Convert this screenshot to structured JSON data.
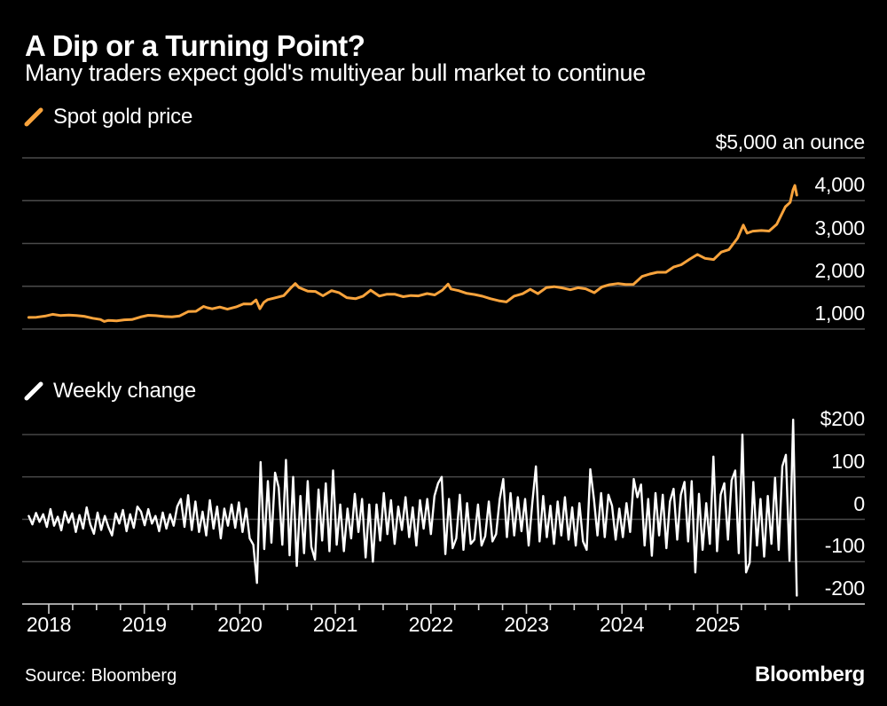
{
  "header": {
    "title": "A Dip or a Turning Point?",
    "subtitle": "Many traders expect gold's multiyear bull market to continue"
  },
  "colors": {
    "background": "#000000",
    "text": "#FFFFFF",
    "grid": "#4B4B4B",
    "axis": "#D0D0D0",
    "gold": "#F8A33C",
    "white_series": "#FFFFFF"
  },
  "x_axis": {
    "year_ticks": [
      2018,
      2019,
      2020,
      2021,
      2022,
      2023,
      2024,
      2025
    ],
    "labels": [
      "2018",
      "2019",
      "2020",
      "2021",
      "2022",
      "2023",
      "2024",
      "2025"
    ],
    "quarter_tick_start": 2018,
    "quarter_tick_end": 2025.75
  },
  "footer": {
    "source": "Source: Bloomberg",
    "brand": "Bloomberg"
  },
  "chart_data": [
    {
      "type": "line",
      "title": "Spot gold price",
      "series_color": "#F8A33C",
      "x_domain": [
        2017.79,
        2025.83
      ],
      "ylim": [
        1000,
        5000
      ],
      "grid": true,
      "y_ticks": [
        {
          "value": 5000,
          "label": "$5,000 an ounce"
        },
        {
          "value": 4000,
          "label": "4,000"
        },
        {
          "value": 3000,
          "label": "3,000"
        },
        {
          "value": 2000,
          "label": "2,000"
        },
        {
          "value": 1000,
          "label": "1,000"
        }
      ],
      "points": [
        [
          2017.79,
          1271
        ],
        [
          2017.87,
          1275
        ],
        [
          2017.96,
          1303
        ],
        [
          2018.04,
          1345
        ],
        [
          2018.12,
          1318
        ],
        [
          2018.21,
          1325
        ],
        [
          2018.29,
          1315
        ],
        [
          2018.37,
          1298
        ],
        [
          2018.46,
          1253
        ],
        [
          2018.54,
          1224
        ],
        [
          2018.58,
          1178
        ],
        [
          2018.62,
          1201
        ],
        [
          2018.71,
          1192
        ],
        [
          2018.79,
          1215
        ],
        [
          2018.87,
          1222
        ],
        [
          2018.96,
          1282
        ],
        [
          2019.04,
          1321
        ],
        [
          2019.12,
          1313
        ],
        [
          2019.21,
          1292
        ],
        [
          2019.29,
          1284
        ],
        [
          2019.37,
          1306
        ],
        [
          2019.46,
          1409
        ],
        [
          2019.54,
          1414
        ],
        [
          2019.62,
          1528
        ],
        [
          2019.66,
          1497
        ],
        [
          2019.71,
          1472
        ],
        [
          2019.79,
          1513
        ],
        [
          2019.87,
          1464
        ],
        [
          2019.96,
          1517
        ],
        [
          2020.04,
          1589
        ],
        [
          2020.12,
          1586
        ],
        [
          2020.17,
          1680
        ],
        [
          2020.21,
          1474
        ],
        [
          2020.25,
          1620
        ],
        [
          2020.29,
          1687
        ],
        [
          2020.37,
          1730
        ],
        [
          2020.46,
          1781
        ],
        [
          2020.54,
          1976
        ],
        [
          2020.58,
          2063
        ],
        [
          2020.62,
          1968
        ],
        [
          2020.71,
          1886
        ],
        [
          2020.79,
          1879
        ],
        [
          2020.87,
          1777
        ],
        [
          2020.96,
          1898
        ],
        [
          2021.04,
          1848
        ],
        [
          2021.12,
          1734
        ],
        [
          2021.21,
          1708
        ],
        [
          2021.29,
          1769
        ],
        [
          2021.37,
          1907
        ],
        [
          2021.46,
          1770
        ],
        [
          2021.54,
          1814
        ],
        [
          2021.62,
          1814
        ],
        [
          2021.71,
          1757
        ],
        [
          2021.79,
          1783
        ],
        [
          2021.87,
          1775
        ],
        [
          2021.96,
          1829
        ],
        [
          2022.04,
          1797
        ],
        [
          2022.12,
          1909
        ],
        [
          2022.18,
          2050
        ],
        [
          2022.21,
          1937
        ],
        [
          2022.29,
          1897
        ],
        [
          2022.37,
          1837
        ],
        [
          2022.46,
          1807
        ],
        [
          2022.54,
          1766
        ],
        [
          2022.62,
          1711
        ],
        [
          2022.71,
          1661
        ],
        [
          2022.79,
          1634
        ],
        [
          2022.87,
          1769
        ],
        [
          2022.96,
          1824
        ],
        [
          2023.04,
          1928
        ],
        [
          2023.12,
          1827
        ],
        [
          2023.21,
          1969
        ],
        [
          2023.29,
          1990
        ],
        [
          2023.37,
          1963
        ],
        [
          2023.46,
          1919
        ],
        [
          2023.54,
          1965
        ],
        [
          2023.62,
          1940
        ],
        [
          2023.71,
          1849
        ],
        [
          2023.79,
          1984
        ],
        [
          2023.87,
          2036
        ],
        [
          2023.96,
          2063
        ],
        [
          2024.04,
          2040
        ],
        [
          2024.12,
          2044
        ],
        [
          2024.21,
          2230
        ],
        [
          2024.29,
          2286
        ],
        [
          2024.37,
          2327
        ],
        [
          2024.46,
          2327
        ],
        [
          2024.54,
          2448
        ],
        [
          2024.62,
          2503
        ],
        [
          2024.71,
          2635
        ],
        [
          2024.79,
          2744
        ],
        [
          2024.87,
          2651
        ],
        [
          2024.96,
          2625
        ],
        [
          2025.04,
          2798
        ],
        [
          2025.12,
          2858
        ],
        [
          2025.21,
          3124
        ],
        [
          2025.27,
          3430
        ],
        [
          2025.31,
          3240
        ],
        [
          2025.37,
          3289
        ],
        [
          2025.46,
          3303
        ],
        [
          2025.54,
          3290
        ],
        [
          2025.62,
          3448
        ],
        [
          2025.71,
          3858
        ],
        [
          2025.76,
          3960
        ],
        [
          2025.79,
          4250
        ],
        [
          2025.81,
          4356
        ],
        [
          2025.83,
          4130
        ]
      ]
    },
    {
      "type": "line",
      "title": "Weekly change",
      "series_color": "#FFFFFF",
      "x_domain": [
        2017.79,
        2025.83
      ],
      "ylim": [
        -200,
        200
      ],
      "grid": true,
      "y_ticks": [
        {
          "value": 200,
          "label": "$200"
        },
        {
          "value": 100,
          "label": "100"
        },
        {
          "value": 0,
          "label": "0"
        },
        {
          "value": -100,
          "label": "-100"
        },
        {
          "value": -200,
          "label": "-200"
        }
      ],
      "values": {
        "start": 2017.79,
        "end": 2025.83,
        "data": [
          8,
          -12,
          15,
          -6,
          12,
          -18,
          24,
          -15,
          6,
          -26,
          18,
          -8,
          14,
          -30,
          10,
          -22,
          28,
          -12,
          -34,
          16,
          -25,
          8,
          -18,
          -38,
          14,
          -10,
          22,
          -28,
          12,
          -20,
          30,
          18,
          -14,
          24,
          -10,
          8,
          -28,
          16,
          -22,
          12,
          -15,
          30,
          48,
          -18,
          57,
          -25,
          42,
          -30,
          18,
          -38,
          45,
          -22,
          30,
          -45,
          25,
          -15,
          35,
          -20,
          40,
          -30,
          25,
          -45,
          -60,
          -150,
          135,
          -70,
          90,
          -55,
          110,
          75,
          -60,
          140,
          -85,
          100,
          -110,
          55,
          -80,
          90,
          -65,
          -95,
          70,
          -50,
          85,
          -75,
          115,
          -60,
          35,
          -75,
          25,
          -45,
          60,
          -30,
          48,
          -90,
          35,
          -100,
          35,
          -50,
          62,
          -35,
          45,
          -58,
          30,
          -25,
          52,
          -42,
          28,
          -62,
          45,
          -22,
          48,
          -35,
          55,
          85,
          100,
          -82,
          48,
          -68,
          -45,
          58,
          -72,
          38,
          -58,
          -48,
          35,
          -62,
          -40,
          42,
          -52,
          -35,
          48,
          95,
          -42,
          62,
          -38,
          52,
          -28,
          48,
          -62,
          38,
          125,
          -52,
          55,
          -42,
          32,
          -58,
          42,
          -38,
          52,
          -48,
          28,
          -62,
          38,
          -52,
          -72,
          118,
          48,
          -38,
          62,
          -42,
          58,
          32,
          -48,
          25,
          -42,
          38,
          -30,
          95,
          52,
          82,
          -62,
          48,
          -86,
          62,
          -38,
          58,
          -68,
          42,
          72,
          -48,
          58,
          88,
          -52,
          90,
          -125,
          60,
          -72,
          38,
          -58,
          148,
          -75,
          58,
          85,
          -48,
          92,
          115,
          -80,
          200,
          -125,
          -102,
          88,
          -62,
          48,
          -88,
          55,
          -58,
          98,
          -72,
          125,
          152,
          -98,
          235,
          -180
        ]
      }
    }
  ]
}
